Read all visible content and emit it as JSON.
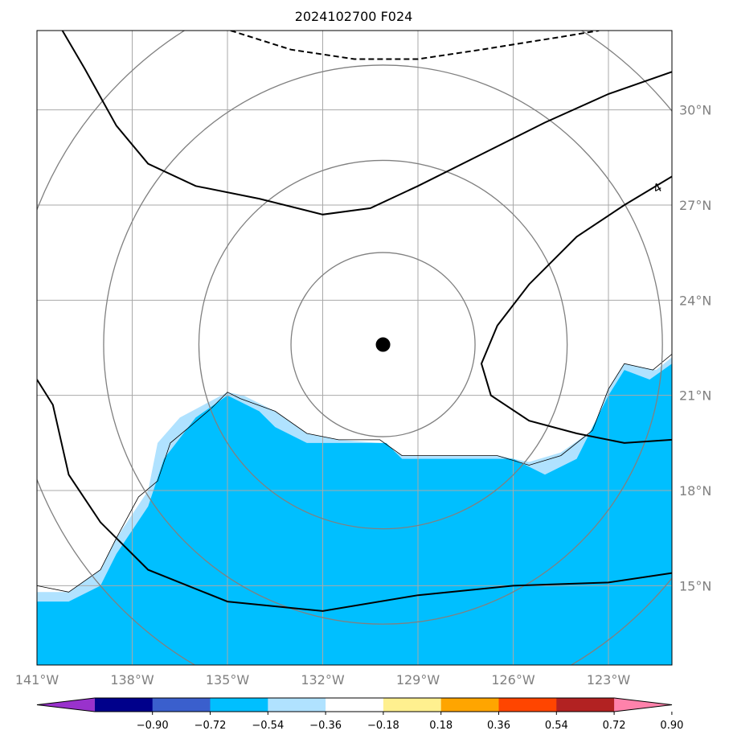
{
  "title": "2024102700 F024",
  "chart_data": {
    "type": "map",
    "title": "2024102700 F024",
    "lon_range": [
      -141,
      -121
    ],
    "lat_range": [
      12.5,
      32.5
    ],
    "lon_ticks": [
      -141,
      -138,
      -135,
      -132,
      -129,
      -126,
      -123
    ],
    "lat_ticks": [
      15,
      18,
      21,
      24,
      27,
      30
    ],
    "lon_tick_labels": [
      "141°W",
      "138°W",
      "135°W",
      "132°W",
      "129°W",
      "126°W",
      "123°W"
    ],
    "lat_tick_labels": [
      "15°N",
      "18°N",
      "21°N",
      "24°N",
      "27°N",
      "30°N"
    ],
    "grid": true,
    "center_marker": {
      "lon": -130.1,
      "lat": 22.6
    },
    "range_rings_deg": [
      2.9,
      5.8,
      8.8,
      11.7
    ],
    "contour_label": "4",
    "colorbar": {
      "levels": [
        "−0.90",
        "−0.72",
        "−0.54",
        "−0.36",
        "−0.18",
        "0.18",
        "0.36",
        "0.54",
        "0.72",
        "0.90"
      ],
      "colors": [
        "#9932cc",
        "#00008b",
        "#3a5fcd",
        "#00bfff",
        "#b0e2ff",
        "#ffffff",
        "#fff08f",
        "#ffa500",
        "#ff4500",
        "#b22222",
        "#ff82ab"
      ],
      "extend": "both"
    },
    "fill_regions": [
      {
        "level": "-0.36 to -0.18",
        "color": "#b0e2ff",
        "outline": [
          [
            -141,
            14.8
          ],
          [
            -140,
            14.8
          ],
          [
            -139,
            15.5
          ],
          [
            -138.5,
            16.5
          ],
          [
            -137.5,
            18
          ],
          [
            -137.2,
            19.5
          ],
          [
            -136.5,
            20.3
          ],
          [
            -135,
            21.1
          ],
          [
            -134.5,
            21
          ],
          [
            -133.5,
            20.5
          ],
          [
            -132.5,
            19.8
          ],
          [
            -131.5,
            19.6
          ],
          [
            -130.2,
            19.5
          ],
          [
            -129.5,
            19.1
          ],
          [
            -126.5,
            19.1
          ],
          [
            -125.5,
            18.9
          ],
          [
            -124.5,
            19.2
          ],
          [
            -123.5,
            19.9
          ],
          [
            -123,
            21.2
          ],
          [
            -122.5,
            22
          ],
          [
            -121.5,
            21.8
          ],
          [
            -121,
            22.2
          ],
          [
            -121,
            12.5
          ],
          [
            -141,
            12.5
          ]
        ]
      },
      {
        "level": "-0.54 to -0.36",
        "color": "#00bfff",
        "outline": [
          [
            -141,
            14.5
          ],
          [
            -140,
            14.5
          ],
          [
            -139,
            15
          ],
          [
            -138.5,
            16
          ],
          [
            -137.5,
            17.5
          ],
          [
            -137,
            19
          ],
          [
            -136,
            20.3
          ],
          [
            -135,
            21
          ],
          [
            -134,
            20.5
          ],
          [
            -133.5,
            20
          ],
          [
            -132.5,
            19.5
          ],
          [
            -130,
            19.5
          ],
          [
            -129.5,
            19
          ],
          [
            -126,
            19
          ],
          [
            -125,
            18.5
          ],
          [
            -124,
            19
          ],
          [
            -123.5,
            20
          ],
          [
            -123,
            21
          ],
          [
            -122.5,
            21.8
          ],
          [
            -121.7,
            21.5
          ],
          [
            -121,
            22
          ],
          [
            -121,
            12.5
          ],
          [
            -141,
            12.5
          ]
        ]
      }
    ],
    "contours": [
      {
        "style": "solid",
        "points": [
          [
            -140.2,
            32.5
          ],
          [
            -139.5,
            31.3
          ],
          [
            -138.5,
            29.5
          ],
          [
            -137.5,
            28.3
          ],
          [
            -136,
            27.6
          ],
          [
            -134,
            27.2
          ],
          [
            -132,
            26.7
          ],
          [
            -130.5,
            26.9
          ],
          [
            -129,
            27.6
          ],
          [
            -127,
            28.6
          ],
          [
            -125,
            29.6
          ],
          [
            -123,
            30.5
          ],
          [
            -121,
            31.2
          ]
        ]
      },
      {
        "style": "solid",
        "points": [
          [
            -141,
            21.5
          ],
          [
            -140.5,
            20.7
          ],
          [
            -140,
            18.5
          ],
          [
            -139,
            17
          ],
          [
            -137.5,
            15.5
          ],
          [
            -135,
            14.5
          ],
          [
            -132,
            14.2
          ],
          [
            -129,
            14.7
          ],
          [
            -126,
            15
          ],
          [
            -123,
            15.1
          ],
          [
            -121,
            15.4
          ]
        ]
      },
      {
        "style": "solid",
        "points": [
          [
            -121,
            27.9
          ],
          [
            -122.5,
            27
          ],
          [
            -124,
            26
          ],
          [
            -125.5,
            24.5
          ],
          [
            -126.5,
            23.2
          ],
          [
            -127,
            22
          ],
          [
            -126.7,
            21
          ],
          [
            -125.5,
            20.2
          ],
          [
            -124,
            19.8
          ],
          [
            -122.5,
            19.5
          ],
          [
            -121,
            19.6
          ]
        ]
      },
      {
        "style": "dashed",
        "points": [
          [
            -134.9,
            32.5
          ],
          [
            -133,
            31.9
          ],
          [
            -131,
            31.6
          ],
          [
            -129,
            31.6
          ],
          [
            -127,
            31.9
          ],
          [
            -124.5,
            32.3
          ],
          [
            -123.3,
            32.5
          ]
        ]
      }
    ],
    "coastline": [
      [
        -141,
        15
      ],
      [
        -140,
        14.8
      ],
      [
        -139,
        15.5
      ],
      [
        -138.5,
        16.5
      ],
      [
        -137.8,
        17.8
      ],
      [
        -137.2,
        18.3
      ],
      [
        -136.8,
        19.5
      ],
      [
        -136.2,
        20
      ],
      [
        -135.5,
        20.6
      ],
      [
        -135,
        21.1
      ],
      [
        -134.6,
        20.9
      ],
      [
        -133.5,
        20.5
      ],
      [
        -132.5,
        19.8
      ],
      [
        -131.5,
        19.6
      ],
      [
        -130.2,
        19.6
      ],
      [
        -129.5,
        19.1
      ],
      [
        -126.5,
        19.1
      ],
      [
        -125.5,
        18.8
      ],
      [
        -124.5,
        19.1
      ],
      [
        -123.5,
        19.9
      ],
      [
        -123,
        21.2
      ],
      [
        -122.5,
        22
      ],
      [
        -121.6,
        21.8
      ],
      [
        -121,
        22.3
      ]
    ]
  }
}
